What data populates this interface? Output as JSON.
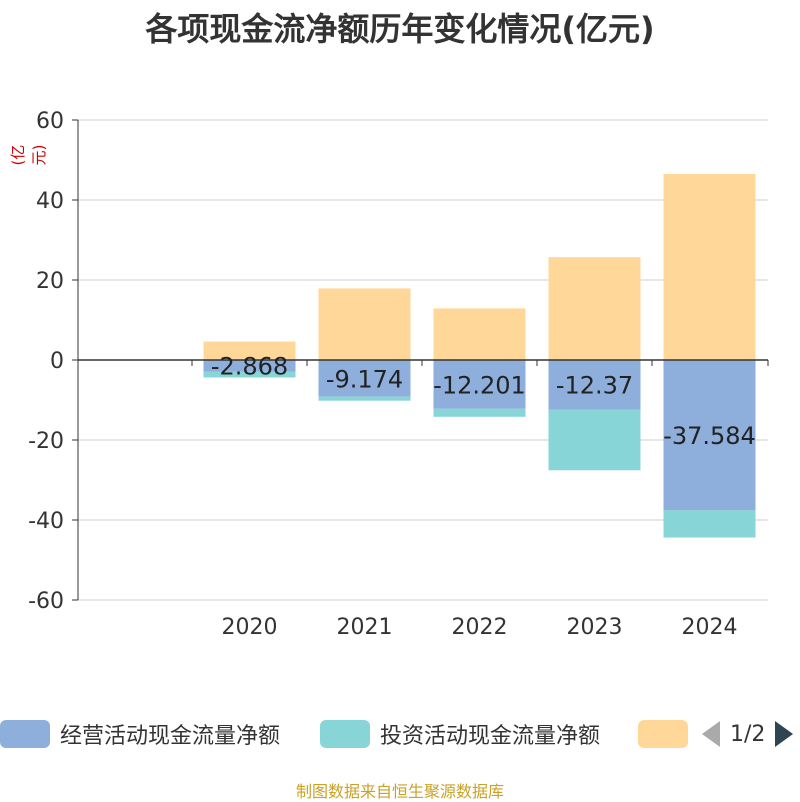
{
  "chart_data": {
    "type": "bar",
    "title": "各项现金流净额历年变化情况(亿元)",
    "unit_label": "(亿元)",
    "categories": [
      "2020",
      "2021",
      "2022",
      "2023",
      "2024"
    ],
    "ylim": [
      -60,
      60
    ],
    "yticks": [
      60,
      40,
      20,
      0,
      -20,
      -40,
      -60
    ],
    "grid": true,
    "stacked": true,
    "series": [
      {
        "name": "经营活动现金流量净额",
        "color": "#8eaedb",
        "values": [
          -2.868,
          -9.174,
          -12.201,
          -12.37,
          -37.584
        ],
        "labels": [
          "-2.868",
          "-9.174",
          "-12.201",
          "-12.37",
          "-37.584"
        ]
      },
      {
        "name": "投资活动现金流量净额",
        "color": "#88d5d8",
        "values": [
          -1.5,
          -1.0,
          -2.0,
          -15.2,
          -6.8
        ]
      },
      {
        "name": "",
        "color": "#ffd899",
        "values": [
          4.6,
          17.9,
          12.9,
          25.7,
          46.5
        ]
      }
    ]
  },
  "legend": {
    "items": [
      {
        "label": "经营活动现金流量净额",
        "color": "#8eaedb"
      },
      {
        "label": "投资活动现金流量净额",
        "color": "#88d5d8"
      },
      {
        "label": "",
        "color": "#ffd899"
      }
    ],
    "page_indicator": "1/2"
  },
  "source": "制图数据来自恒生聚源数据库"
}
